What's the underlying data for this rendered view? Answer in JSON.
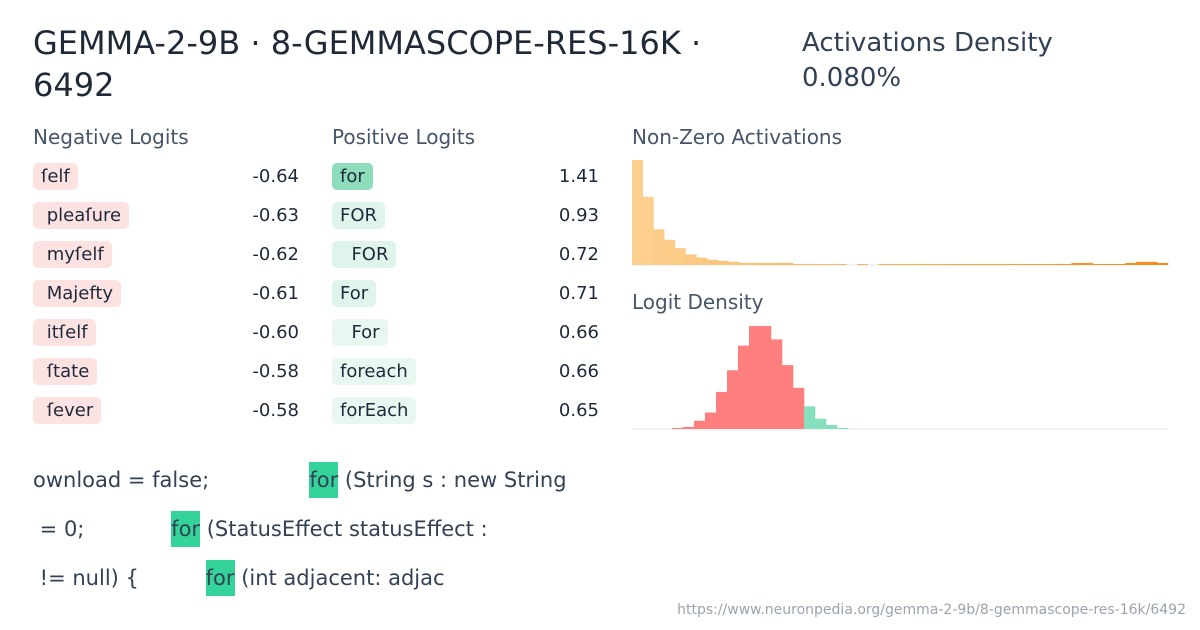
{
  "header": {
    "title": "GEMMA-2-9B · 8-GEMMASCOPE-RES-16K · 6492",
    "density_label": "Activations Density",
    "density_value": "0.080%"
  },
  "negative_logits": {
    "label": "Negative Logits",
    "color": "#fde2e2",
    "tokens": [
      "ſelf",
      " pleaſure",
      " myſelf",
      " Majefty",
      " itſelf",
      " ſtate",
      " ſever"
    ],
    "values": [
      "-0.64",
      "-0.63",
      "-0.62",
      "-0.61",
      "-0.60",
      "-0.58",
      "-0.58"
    ]
  },
  "positive_logits": {
    "label": "Positive Logits",
    "colors": [
      "#8ddcbc",
      "#dff5ec",
      "#dff5ec",
      "#dff5ec",
      "#e8f8f1",
      "#e8f8f1",
      "#e8f8f1"
    ],
    "tokens": [
      "for",
      "FOR",
      "  FOR",
      "For",
      "  For",
      "foreach",
      "forEach"
    ],
    "values": [
      "1.41",
      "0.93",
      "0.72",
      "0.71",
      "0.66",
      "0.66",
      "0.65"
    ]
  },
  "activations_histogram": {
    "type": "bar",
    "title": "Non-Zero Activations",
    "color_start": "#fdd08f",
    "color_end": "#ee8f1c",
    "values": [
      100,
      65,
      34,
      24,
      16,
      10,
      7,
      5,
      4,
      3,
      2,
      2,
      2,
      2,
      2,
      1,
      1,
      1,
      1,
      1,
      0,
      1,
      0,
      1,
      1,
      1,
      1,
      1,
      1,
      1,
      1,
      1,
      1,
      1,
      1,
      1,
      1,
      1,
      1,
      1,
      1,
      2,
      2,
      1,
      1,
      1,
      2,
      3,
      3,
      2
    ]
  },
  "logit_histogram": {
    "type": "bar",
    "title": "Logit Density",
    "series": [
      {
        "name": "negative",
        "color": "#ff7f7f",
        "values": [
          1,
          2,
          8,
          16,
          36,
          57,
          81,
          100,
          100,
          87,
          62,
          40
        ]
      },
      {
        "name": "positive",
        "color": "#86dfbd",
        "values": [
          22,
          10,
          4,
          1
        ]
      }
    ]
  },
  "examples": [
    {
      "before": "ownload = false;               ",
      "token": "for",
      "after": " (String s : new String"
    },
    {
      "before": " = 0;             ",
      "token": "for",
      "after": " (StatusEffect statusEffect :"
    },
    {
      "before": " != null) {          ",
      "token": "for",
      "after": " (int adjacent: adjac"
    }
  ],
  "url": "https://www.neuronpedia.org/gemma-2-9b/8-gemmascope-res-16k/6492"
}
